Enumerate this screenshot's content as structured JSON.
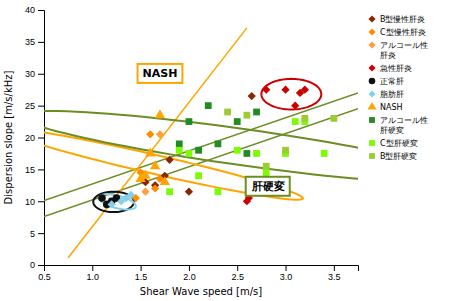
{
  "chart_data": {
    "type": "scatter",
    "x_label": "Shear Wave speed [m/s]",
    "y_label": "Dispersion slope [m/s/kHz]",
    "xlim": [
      0.5,
      3.75
    ],
    "ylim": [
      0.0,
      40.0
    ],
    "xticks": [
      0.5,
      {
        "value": 1.0,
        "label": "1.0"
      },
      1.5,
      {
        "value": 2.0,
        "label": "2.0"
      },
      2.5,
      {
        "value": 3.0,
        "label": "3.0"
      },
      3.5
    ],
    "yticks": [
      0,
      5,
      10,
      15,
      20,
      25,
      30,
      35,
      40
    ],
    "grid": false,
    "legend": "right",
    "series": [
      {
        "name": "B型慢性肝炎",
        "color": "#8B2500",
        "marker": "diamond",
        "x": [
          1.55,
          1.65,
          1.75,
          1.8,
          2.0,
          2.65
        ],
        "values": [
          13.0,
          12.5,
          14.0,
          16.5,
          11.5,
          26.5
        ]
      },
      {
        "name": "C型慢性肝炎",
        "color": "#FF8C00",
        "marker": "diamond",
        "x": [
          1.45,
          1.5,
          1.6,
          1.65,
          1.7
        ],
        "values": [
          10.5,
          14.5,
          20.5,
          12.0,
          13.5
        ]
      },
      {
        "name": "アルコール性\n肝炎",
        "color": "#FFA040",
        "marker": "diamond",
        "x": [
          1.55,
          1.7
        ],
        "values": [
          11.5,
          20.5
        ]
      },
      {
        "name": "急性肝炎",
        "color": "#CC0000",
        "marker": "diamond",
        "x": [
          2.8,
          3.0,
          3.1,
          3.15,
          3.2,
          2.6,
          2.62
        ],
        "values": [
          27.5,
          27.5,
          25.0,
          27.0,
          27.5,
          10.0,
          10.5
        ]
      },
      {
        "name": "正常肝",
        "color": "#111111",
        "marker": "circle",
        "x": [
          1.1,
          1.15,
          1.2,
          1.25
        ],
        "values": [
          10.5,
          9.5,
          10.0,
          10.5
        ]
      },
      {
        "name": "脂肪肝",
        "color": "#87CEEB",
        "marker": "diamond",
        "x": [
          1.2,
          1.3,
          1.35,
          1.4
        ],
        "values": [
          9.5,
          10.0,
          10.5,
          11.0
        ]
      },
      {
        "name": "NASH",
        "color": "#FFA500",
        "marker": "triangle",
        "x": [
          1.5,
          1.55,
          1.6,
          1.65,
          1.7,
          1.75
        ],
        "values": [
          13.5,
          14.0,
          17.5,
          15.5,
          23.5,
          13.0
        ]
      },
      {
        "name": "アルコール性\n肝硬変",
        "color": "#228B22",
        "marker": "square",
        "x": [
          1.9,
          2.0,
          2.1,
          2.2,
          2.3,
          2.5,
          2.6,
          2.7
        ],
        "values": [
          19.0,
          22.5,
          18.0,
          25.0,
          19.0,
          22.5,
          17.5,
          24.0
        ]
      },
      {
        "name": "C型肝硬変",
        "color": "#7CFC00",
        "marker": "square",
        "x": [
          1.8,
          1.9,
          2.0,
          2.1,
          2.3,
          2.5,
          2.7,
          2.8,
          3.0,
          3.1,
          3.2,
          3.4
        ],
        "values": [
          11.5,
          18.0,
          17.5,
          14.0,
          11.5,
          18.0,
          17.5,
          14.5,
          17.5,
          22.5,
          22.5,
          17.5
        ]
      },
      {
        "name": "B型肝硬変",
        "color": "#9ACD32",
        "marker": "square",
        "x": [
          2.4,
          2.6,
          2.8,
          3.0,
          3.2,
          3.5
        ],
        "values": [
          24.0,
          23.5,
          15.5,
          18.0,
          23.0,
          23.0
        ]
      }
    ],
    "lines": [
      {
        "color": "#6B8E23",
        "x": [
          0.5,
          3.75
        ],
        "values": [
          7.6,
          24.5
        ]
      },
      {
        "color": "#6B8E23",
        "x": [
          0.5,
          3.75
        ],
        "values": [
          10.1,
          27.0
        ]
      },
      {
        "color": "#FFA500",
        "x": [
          0.75,
          2.6
        ],
        "values": [
          1.125,
          37.2
        ]
      }
    ],
    "ellipses": [
      {
        "cx": 1.22,
        "cy": 9.9,
        "width": 0.42,
        "height": 3.2,
        "angle": 0,
        "color": "#111111"
      },
      {
        "cx": 1.26,
        "cy": 9.9,
        "width": 0.32,
        "height": 2.4,
        "angle": 5,
        "color": "#87CEEB"
      },
      {
        "cx": 1.64,
        "cy": 15.8,
        "width": 0.82,
        "height": 11.5,
        "angle": 15,
        "color": "#FFA500"
      },
      {
        "cx": 3.06,
        "cy": 26.8,
        "width": 0.62,
        "height": 4.8,
        "angle": 0,
        "color": "#CC0000"
      },
      {
        "cx": 2.55,
        "cy": 18.5,
        "width": 2.2,
        "height": 12.0,
        "angle": 20,
        "color": "#6B8E23"
      }
    ],
    "annotations": [
      {
        "text": "NASH",
        "x": 1.52,
        "y": 29.5,
        "color": "#FFA500"
      },
      {
        "text": "肝硬変",
        "x": 2.65,
        "y": 11.8,
        "color": "#6B8E23"
      }
    ]
  }
}
